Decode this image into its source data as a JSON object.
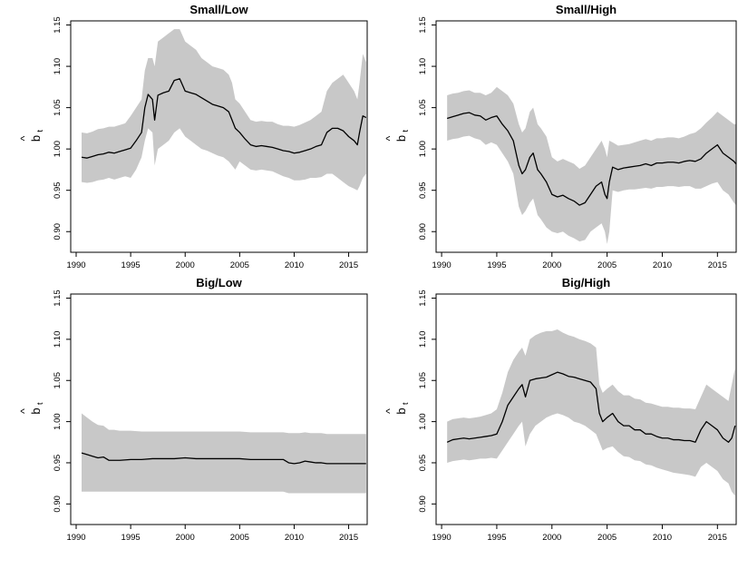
{
  "chart_data": [
    {
      "type": "line",
      "title": "Small/Low",
      "ylabel": {
        "hat": "^",
        "symbol": "b",
        "subscript": "t"
      },
      "xlim": [
        1989.5,
        2016.7
      ],
      "ylim": [
        0.875,
        1.155
      ],
      "xticks": [
        1990,
        1995,
        2000,
        2005,
        2010,
        2015
      ],
      "yticks": [
        "0.90",
        "0.95",
        "1.00",
        "1.05",
        "1.10",
        "1.15"
      ],
      "band_color": "#c8c8c8",
      "line_color": "#000000",
      "series": [
        {
          "x": [
            1990.5,
            1991,
            1991.5,
            1992,
            1992.5,
            1993,
            1993.5,
            1994,
            1994.5,
            1995,
            1995.5,
            1996,
            1996.3,
            1996.6,
            1997,
            1997.2,
            1997.5,
            1998,
            1998.5,
            1999,
            1999.5,
            2000,
            2000.5,
            2001,
            2001.5,
            2002,
            2002.5,
            2003,
            2003.5,
            2004,
            2004.3,
            2004.6,
            2005,
            2005.5,
            2006,
            2006.5,
            2007,
            2007.5,
            2008,
            2008.5,
            2009,
            2009.5,
            2010,
            2010.5,
            2011,
            2011.5,
            2012,
            2012.5,
            2013,
            2013.5,
            2014,
            2014.5,
            2015,
            2015.5,
            2015.8,
            2016,
            2016.3,
            2016.6
          ],
          "y": [
            0.99,
            0.989,
            0.991,
            0.993,
            0.994,
            0.996,
            0.995,
            0.997,
            0.999,
            1.001,
            1.01,
            1.02,
            1.05,
            1.066,
            1.06,
            1.035,
            1.065,
            1.068,
            1.07,
            1.083,
            1.085,
            1.07,
            1.068,
            1.066,
            1.062,
            1.058,
            1.054,
            1.052,
            1.05,
            1.045,
            1.035,
            1.025,
            1.02,
            1.012,
            1.005,
            1.003,
            1.004,
            1.003,
            1.002,
            1.0,
            0.998,
            0.997,
            0.995,
            0.996,
            0.998,
            1.0,
            1.003,
            1.005,
            1.02,
            1.025,
            1.025,
            1.022,
            1.015,
            1.01,
            1.005,
            1.02,
            1.04,
            1.038
          ],
          "lower": [
            0.96,
            0.959,
            0.96,
            0.962,
            0.963,
            0.965,
            0.963,
            0.965,
            0.967,
            0.965,
            0.975,
            0.99,
            1.01,
            1.025,
            1.02,
            0.98,
            1.0,
            1.005,
            1.01,
            1.02,
            1.025,
            1.015,
            1.01,
            1.005,
            1.0,
            0.998,
            0.995,
            0.992,
            0.99,
            0.985,
            0.98,
            0.975,
            0.985,
            0.98,
            0.975,
            0.974,
            0.975,
            0.974,
            0.973,
            0.97,
            0.967,
            0.965,
            0.962,
            0.962,
            0.963,
            0.965,
            0.965,
            0.966,
            0.97,
            0.97,
            0.965,
            0.96,
            0.955,
            0.952,
            0.95,
            0.955,
            0.965,
            0.97
          ],
          "upper": [
            1.02,
            1.019,
            1.021,
            1.024,
            1.025,
            1.027,
            1.027,
            1.029,
            1.031,
            1.04,
            1.05,
            1.06,
            1.095,
            1.11,
            1.11,
            1.1,
            1.13,
            1.135,
            1.14,
            1.145,
            1.145,
            1.13,
            1.125,
            1.12,
            1.11,
            1.105,
            1.1,
            1.098,
            1.096,
            1.09,
            1.08,
            1.06,
            1.055,
            1.045,
            1.035,
            1.033,
            1.034,
            1.033,
            1.033,
            1.03,
            1.028,
            1.028,
            1.027,
            1.029,
            1.032,
            1.035,
            1.04,
            1.045,
            1.07,
            1.08,
            1.085,
            1.09,
            1.08,
            1.07,
            1.06,
            1.08,
            1.115,
            1.105
          ]
        }
      ]
    },
    {
      "type": "line",
      "title": "Small/High",
      "ylabel": {
        "hat": "^",
        "symbol": "b",
        "subscript": "t"
      },
      "xlim": [
        1989.5,
        2016.7
      ],
      "ylim": [
        0.875,
        1.155
      ],
      "xticks": [
        1990,
        1995,
        2000,
        2005,
        2010,
        2015
      ],
      "yticks": [
        "0.90",
        "0.95",
        "1.00",
        "1.05",
        "1.10",
        "1.15"
      ],
      "band_color": "#c8c8c8",
      "line_color": "#000000",
      "series": [
        {
          "x": [
            1990.5,
            1991,
            1991.5,
            1992,
            1992.5,
            1993,
            1993.5,
            1994,
            1994.5,
            1995,
            1995.5,
            1996,
            1996.5,
            1997,
            1997.3,
            1997.6,
            1998,
            1998.3,
            1998.7,
            1999,
            1999.5,
            2000,
            2000.5,
            2001,
            2001.5,
            2002,
            2002.5,
            2003,
            2003.5,
            2004,
            2004.5,
            2004.8,
            2005,
            2005.2,
            2005.5,
            2006,
            2006.5,
            2007,
            2007.5,
            2008,
            2008.5,
            2009,
            2009.5,
            2010,
            2010.5,
            2011,
            2011.5,
            2012,
            2012.5,
            2013,
            2013.5,
            2014,
            2014.5,
            2015,
            2015.5,
            2016,
            2016.5,
            2016.8
          ],
          "y": [
            1.037,
            1.039,
            1.041,
            1.043,
            1.044,
            1.041,
            1.04,
            1.035,
            1.038,
            1.04,
            1.03,
            1.022,
            1.01,
            0.98,
            0.97,
            0.975,
            0.99,
            0.995,
            0.975,
            0.97,
            0.96,
            0.945,
            0.942,
            0.944,
            0.94,
            0.937,
            0.932,
            0.935,
            0.945,
            0.955,
            0.96,
            0.945,
            0.94,
            0.96,
            0.978,
            0.975,
            0.977,
            0.978,
            0.979,
            0.98,
            0.982,
            0.98,
            0.983,
            0.983,
            0.984,
            0.984,
            0.983,
            0.985,
            0.986,
            0.985,
            0.988,
            0.995,
            1.0,
            1.005,
            0.995,
            0.99,
            0.985,
            0.98
          ],
          "lower": [
            1.01,
            1.012,
            1.013,
            1.015,
            1.016,
            1.013,
            1.011,
            1.005,
            1.008,
            1.005,
            0.995,
            0.985,
            0.97,
            0.93,
            0.92,
            0.925,
            0.935,
            0.94,
            0.92,
            0.915,
            0.905,
            0.9,
            0.898,
            0.9,
            0.895,
            0.892,
            0.888,
            0.89,
            0.9,
            0.905,
            0.91,
            0.9,
            0.885,
            0.9,
            0.95,
            0.948,
            0.95,
            0.951,
            0.951,
            0.952,
            0.953,
            0.952,
            0.954,
            0.954,
            0.955,
            0.955,
            0.954,
            0.955,
            0.955,
            0.952,
            0.952,
            0.955,
            0.958,
            0.96,
            0.95,
            0.945,
            0.935,
            0.93
          ],
          "upper": [
            1.065,
            1.067,
            1.068,
            1.07,
            1.071,
            1.068,
            1.068,
            1.065,
            1.068,
            1.075,
            1.07,
            1.065,
            1.055,
            1.03,
            1.02,
            1.025,
            1.045,
            1.05,
            1.03,
            1.025,
            1.015,
            0.99,
            0.985,
            0.988,
            0.985,
            0.982,
            0.976,
            0.98,
            0.99,
            1.0,
            1.01,
            1.0,
            0.99,
            1.01,
            1.008,
            1.004,
            1.005,
            1.006,
            1.008,
            1.01,
            1.012,
            1.01,
            1.013,
            1.013,
            1.014,
            1.014,
            1.013,
            1.015,
            1.018,
            1.02,
            1.025,
            1.032,
            1.038,
            1.045,
            1.04,
            1.035,
            1.03,
            1.03
          ]
        }
      ]
    },
    {
      "type": "line",
      "title": "Big/Low",
      "ylabel": {
        "hat": "^",
        "symbol": "b",
        "subscript": "t"
      },
      "xlim": [
        1989.5,
        2016.7
      ],
      "ylim": [
        0.875,
        1.155
      ],
      "xticks": [
        1990,
        1995,
        2000,
        2005,
        2010,
        2015
      ],
      "yticks": [
        "0.90",
        "0.95",
        "1.00",
        "1.05",
        "1.10",
        "1.15"
      ],
      "band_color": "#c8c8c8",
      "line_color": "#000000",
      "series": [
        {
          "x": [
            1990.5,
            1991,
            1991.5,
            1992,
            1992.5,
            1993,
            1993.5,
            1994,
            1995,
            1996,
            1997,
            1998,
            1999,
            2000,
            2001,
            2002,
            2003,
            2004,
            2005,
            2006,
            2007,
            2008,
            2009,
            2009.5,
            2010,
            2010.5,
            2011,
            2011.5,
            2012,
            2012.5,
            2013,
            2014,
            2015,
            2016,
            2016.6
          ],
          "y": [
            0.962,
            0.96,
            0.958,
            0.956,
            0.957,
            0.953,
            0.953,
            0.953,
            0.954,
            0.954,
            0.955,
            0.955,
            0.955,
            0.956,
            0.955,
            0.955,
            0.955,
            0.955,
            0.955,
            0.954,
            0.954,
            0.954,
            0.954,
            0.95,
            0.949,
            0.95,
            0.952,
            0.951,
            0.95,
            0.95,
            0.949,
            0.949,
            0.949,
            0.949,
            0.949
          ],
          "lower": [
            0.915,
            0.915,
            0.915,
            0.915,
            0.915,
            0.915,
            0.915,
            0.915,
            0.915,
            0.915,
            0.915,
            0.915,
            0.915,
            0.915,
            0.915,
            0.915,
            0.915,
            0.915,
            0.915,
            0.915,
            0.915,
            0.915,
            0.915,
            0.913,
            0.913,
            0.913,
            0.913,
            0.913,
            0.913,
            0.913,
            0.913,
            0.913,
            0.913,
            0.913,
            0.913
          ],
          "upper": [
            1.01,
            1.005,
            1.0,
            0.996,
            0.995,
            0.99,
            0.99,
            0.989,
            0.989,
            0.988,
            0.988,
            0.988,
            0.988,
            0.988,
            0.988,
            0.988,
            0.988,
            0.988,
            0.988,
            0.987,
            0.987,
            0.987,
            0.987,
            0.986,
            0.986,
            0.986,
            0.987,
            0.986,
            0.986,
            0.986,
            0.985,
            0.985,
            0.985,
            0.985,
            0.985
          ]
        }
      ]
    },
    {
      "type": "line",
      "title": "Big/High",
      "ylabel": {
        "hat": "^",
        "symbol": "b",
        "subscript": "t"
      },
      "xlim": [
        1989.5,
        2016.7
      ],
      "ylim": [
        0.875,
        1.155
      ],
      "xticks": [
        1990,
        1995,
        2000,
        2005,
        2010,
        2015
      ],
      "yticks": [
        "0.90",
        "0.95",
        "1.00",
        "1.05",
        "1.10",
        "1.15"
      ],
      "band_color": "#c8c8c8",
      "line_color": "#000000",
      "series": [
        {
          "x": [
            1990.5,
            1991,
            1991.5,
            1992,
            1992.5,
            1993,
            1993.5,
            1994,
            1994.5,
            1995,
            1995.5,
            1996,
            1996.5,
            1997,
            1997.3,
            1997.6,
            1998,
            1998.5,
            1999,
            1999.5,
            2000,
            2000.5,
            2001,
            2001.5,
            2002,
            2002.5,
            2003,
            2003.5,
            2004,
            2004.3,
            2004.6,
            2005,
            2005.5,
            2006,
            2006.5,
            2007,
            2007.5,
            2008,
            2008.5,
            2009,
            2009.5,
            2010,
            2010.5,
            2011,
            2011.5,
            2012,
            2012.5,
            2013,
            2013.5,
            2014,
            2014.5,
            2015,
            2015.5,
            2016,
            2016.3,
            2016.6
          ],
          "y": [
            0.975,
            0.978,
            0.979,
            0.98,
            0.979,
            0.98,
            0.981,
            0.982,
            0.983,
            0.985,
            1.0,
            1.02,
            1.03,
            1.04,
            1.045,
            1.03,
            1.05,
            1.052,
            1.053,
            1.054,
            1.057,
            1.06,
            1.058,
            1.055,
            1.054,
            1.052,
            1.05,
            1.048,
            1.04,
            1.01,
            1.0,
            1.005,
            1.01,
            1.0,
            0.995,
            0.995,
            0.99,
            0.99,
            0.985,
            0.985,
            0.982,
            0.98,
            0.98,
            0.978,
            0.978,
            0.977,
            0.977,
            0.975,
            0.99,
            1.0,
            0.995,
            0.99,
            0.98,
            0.975,
            0.98,
            0.995
          ],
          "lower": [
            0.95,
            0.952,
            0.953,
            0.954,
            0.953,
            0.954,
            0.955,
            0.955,
            0.956,
            0.955,
            0.965,
            0.975,
            0.985,
            0.995,
            1.0,
            0.97,
            0.985,
            0.995,
            1.0,
            1.005,
            1.008,
            1.01,
            1.008,
            1.005,
            1.0,
            0.998,
            0.995,
            0.99,
            0.985,
            0.975,
            0.965,
            0.968,
            0.97,
            0.963,
            0.958,
            0.957,
            0.953,
            0.952,
            0.948,
            0.947,
            0.944,
            0.942,
            0.94,
            0.938,
            0.937,
            0.936,
            0.935,
            0.933,
            0.945,
            0.95,
            0.945,
            0.94,
            0.93,
            0.925,
            0.915,
            0.91
          ],
          "upper": [
            1.0,
            1.003,
            1.004,
            1.005,
            1.004,
            1.005,
            1.006,
            1.008,
            1.01,
            1.015,
            1.035,
            1.06,
            1.075,
            1.085,
            1.09,
            1.08,
            1.1,
            1.105,
            1.108,
            1.11,
            1.11,
            1.112,
            1.108,
            1.105,
            1.103,
            1.1,
            1.098,
            1.095,
            1.09,
            1.045,
            1.035,
            1.04,
            1.045,
            1.037,
            1.032,
            1.032,
            1.028,
            1.027,
            1.023,
            1.022,
            1.02,
            1.018,
            1.018,
            1.017,
            1.017,
            1.016,
            1.016,
            1.015,
            1.03,
            1.045,
            1.04,
            1.035,
            1.03,
            1.025,
            1.045,
            1.065
          ]
        }
      ]
    }
  ]
}
